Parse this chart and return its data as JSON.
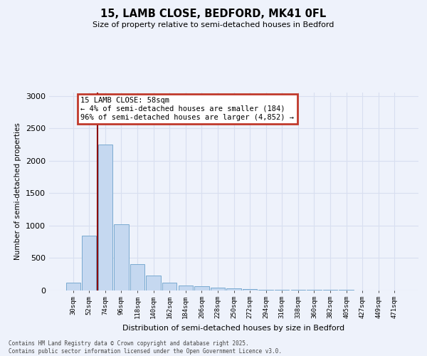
{
  "title": "15, LAMB CLOSE, BEDFORD, MK41 0FL",
  "subtitle": "Size of property relative to semi-detached houses in Bedford",
  "xlabel": "Distribution of semi-detached houses by size in Bedford",
  "ylabel": "Number of semi-detached properties",
  "categories": [
    "30sqm",
    "52sqm",
    "74sqm",
    "96sqm",
    "118sqm",
    "140sqm",
    "162sqm",
    "184sqm",
    "206sqm",
    "228sqm",
    "250sqm",
    "272sqm",
    "294sqm",
    "316sqm",
    "338sqm",
    "360sqm",
    "382sqm",
    "405sqm",
    "427sqm",
    "449sqm",
    "471sqm"
  ],
  "values": [
    120,
    840,
    2250,
    1020,
    400,
    230,
    120,
    70,
    55,
    40,
    30,
    20,
    10,
    5,
    3,
    2,
    1,
    1,
    0,
    0,
    0
  ],
  "bar_color": "#c5d8f0",
  "bar_edge_color": "#7aaad0",
  "vline_color": "#8b0000",
  "annotation_text": "15 LAMB CLOSE: 58sqm\n← 4% of semi-detached houses are smaller (184)\n96% of semi-detached houses are larger (4,852) →",
  "annotation_box_color": "#c0392b",
  "ylim": [
    0,
    3050
  ],
  "yticks": [
    0,
    500,
    1000,
    1500,
    2000,
    2500,
    3000
  ],
  "background_color": "#eef2fb",
  "grid_color": "#d8dff0",
  "footer_line1": "Contains HM Land Registry data © Crown copyright and database right 2025.",
  "footer_line2": "Contains public sector information licensed under the Open Government Licence v3.0."
}
